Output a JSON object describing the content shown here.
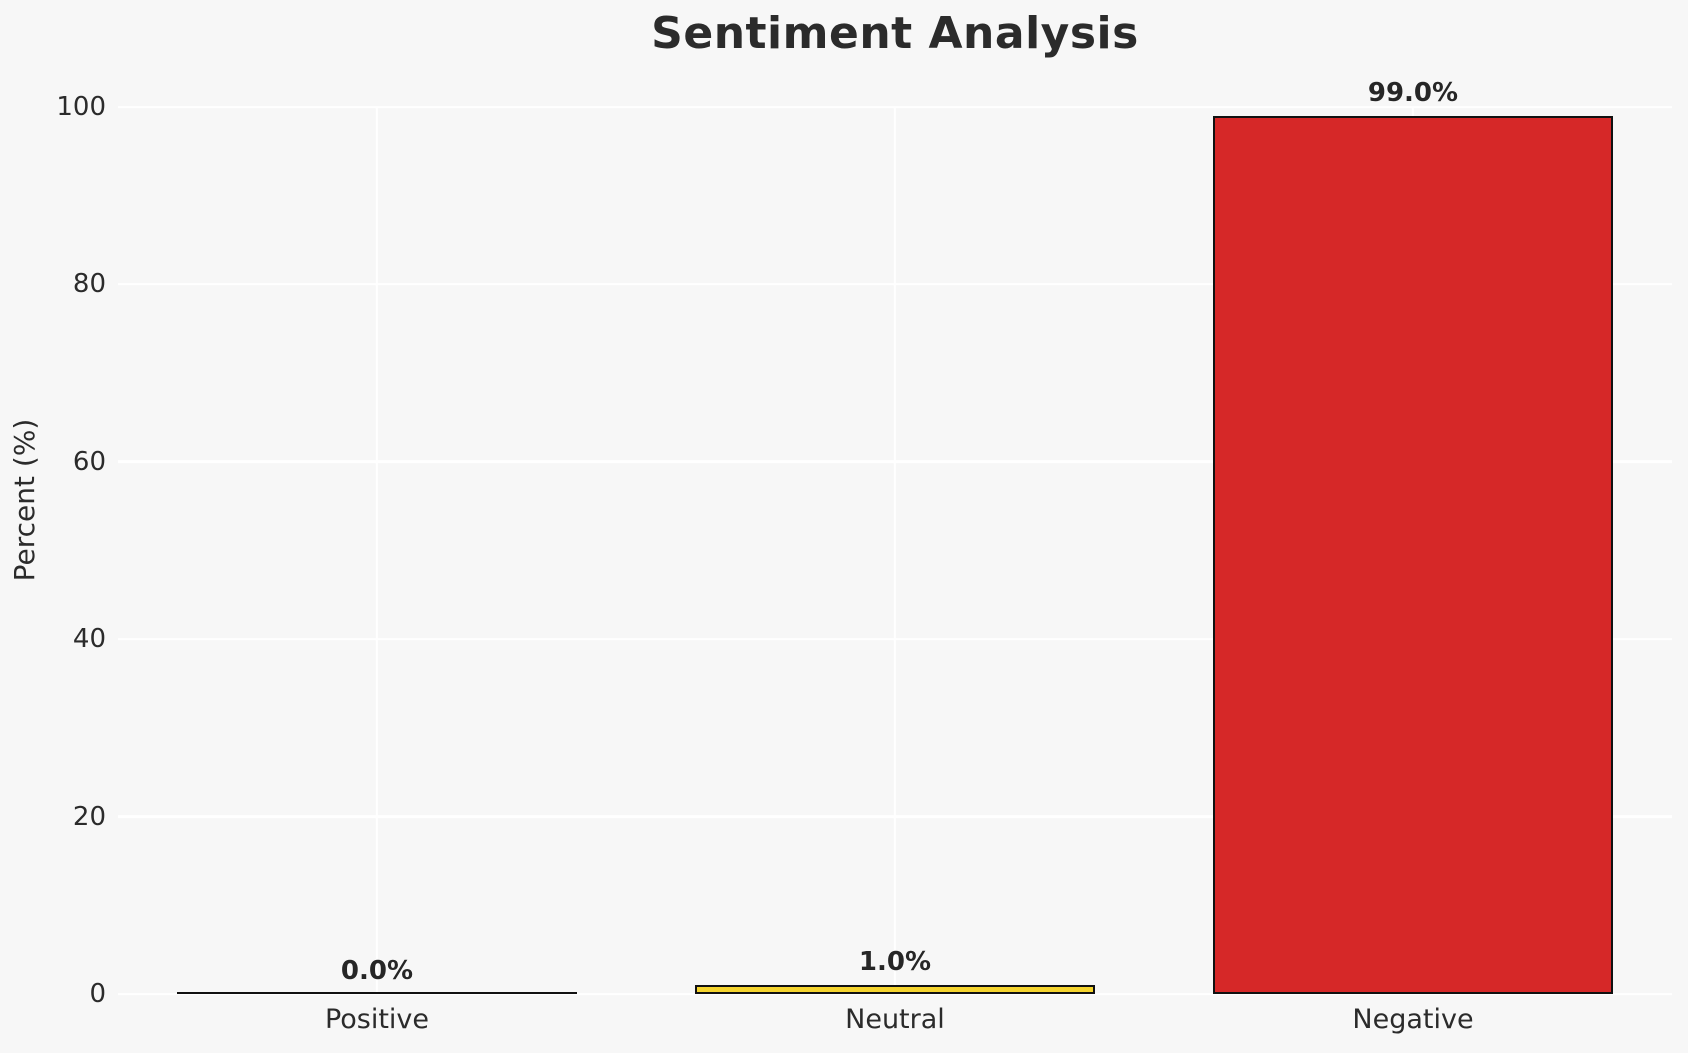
{
  "chart_data": {
    "type": "bar",
    "title": "Sentiment Analysis",
    "xlabel": "",
    "ylabel": "Percent (%)",
    "categories": [
      "Positive",
      "Neutral",
      "Negative"
    ],
    "values": [
      0.0,
      1.0,
      99.0
    ],
    "bar_labels": [
      "0.0%",
      "1.0%",
      "99.0%"
    ],
    "bar_fill_colors": [
      "transparent",
      "#f5d42e",
      "#d62828"
    ],
    "bar_edge_color": "#111111",
    "yticks": [
      0,
      20,
      40,
      60,
      80,
      100
    ],
    "ylim": [
      0,
      100
    ],
    "grid": true,
    "grid_color": "#ffffff",
    "background_color": "#f7f7f7",
    "legend_position": "none"
  }
}
